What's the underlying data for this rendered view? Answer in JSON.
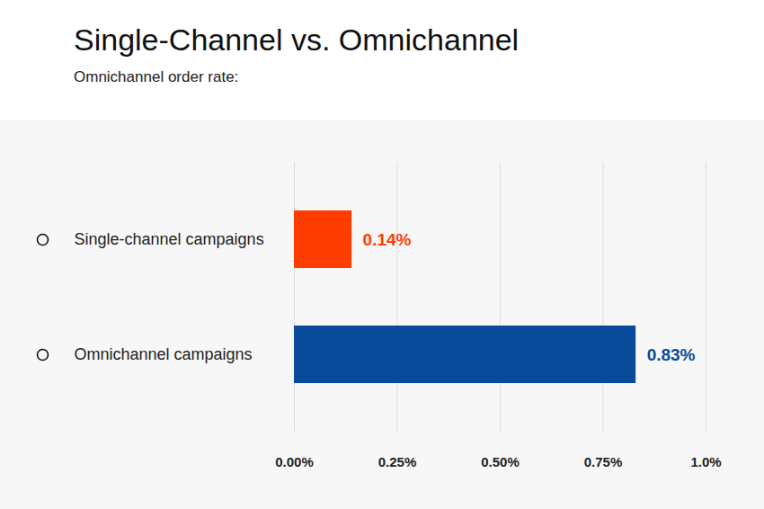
{
  "chart_data": {
    "type": "bar",
    "title": "Single-Channel vs. Omnichannel",
    "subtitle": "Omnichannel order rate:",
    "orientation": "horizontal",
    "categories": [
      "Single-channel campaigns",
      "Omnichannel campaigns"
    ],
    "values": [
      0.14,
      0.83
    ],
    "value_labels": [
      "0.14%",
      "0.83%"
    ],
    "colors": [
      "#ff3d00",
      "#0a4a9b"
    ],
    "xlim": [
      0,
      1
    ],
    "xticks": [
      {
        "value": 0,
        "label": "0.00%"
      },
      {
        "value": 0.25,
        "label": "0.25%"
      },
      {
        "value": 0.5,
        "label": "0.50%"
      },
      {
        "value": 0.75,
        "label": "0.75%"
      },
      {
        "value": 1,
        "label": "1.0%"
      }
    ],
    "grid": true,
    "data_labels": true
  }
}
